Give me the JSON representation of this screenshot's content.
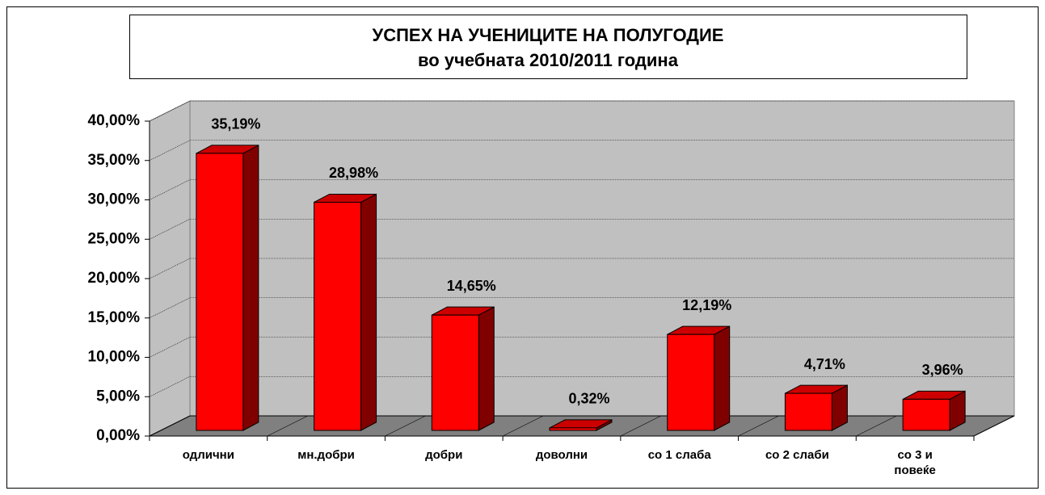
{
  "chart_data": {
    "type": "bar3d",
    "title": "УСПЕХ  НА УЧЕНИЦИТЕ НА ПОЛУГОДИЕ",
    "subtitle": "во  учебната  2010/2011 година",
    "categories": [
      "одлични",
      "мн.добри",
      "добри",
      "доволни",
      "со 1 слаба",
      "со 2 слаби",
      "со 3 и\nповеќе"
    ],
    "values": [
      35.19,
      28.98,
      14.65,
      0.32,
      12.19,
      4.71,
      3.96
    ],
    "value_labels": [
      "35,19%",
      "28,98%",
      "14,65%",
      "0,32%",
      "12,19%",
      "4,71%",
      "3,96%"
    ],
    "color": "#ff0000",
    "ylim": [
      0,
      40
    ],
    "yticks": [
      {
        "value": 0,
        "label": "0,00%"
      },
      {
        "value": 5,
        "label": "5,00%"
      },
      {
        "value": 10,
        "label": "10,00%"
      },
      {
        "value": 15,
        "label": "15,00%"
      },
      {
        "value": 20,
        "label": "20,00%"
      },
      {
        "value": 25,
        "label": "25,00%"
      },
      {
        "value": 30,
        "label": "30,00%"
      },
      {
        "value": 35,
        "label": "35,00%"
      },
      {
        "value": 40,
        "label": "40,00%"
      }
    ],
    "grid": true
  }
}
